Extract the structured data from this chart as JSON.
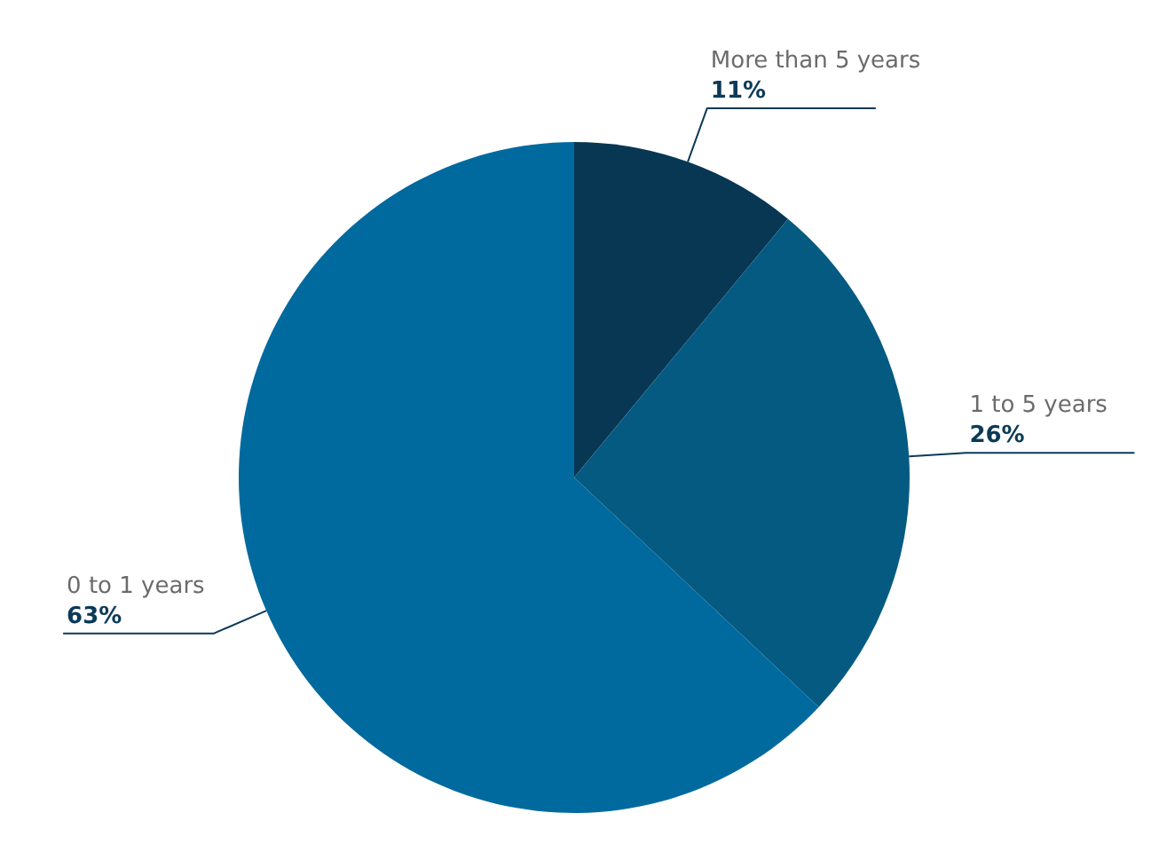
{
  "chart_data": {
    "type": "pie",
    "categories": [
      "More than 5 years",
      "1 to 5 years",
      "0 to 1 years"
    ],
    "values": [
      11,
      26,
      63
    ],
    "colors": [
      "#083754",
      "#055a82",
      "#006a9e"
    ],
    "value_labels": [
      "11%",
      "26%",
      "63%"
    ],
    "legend": false
  }
}
